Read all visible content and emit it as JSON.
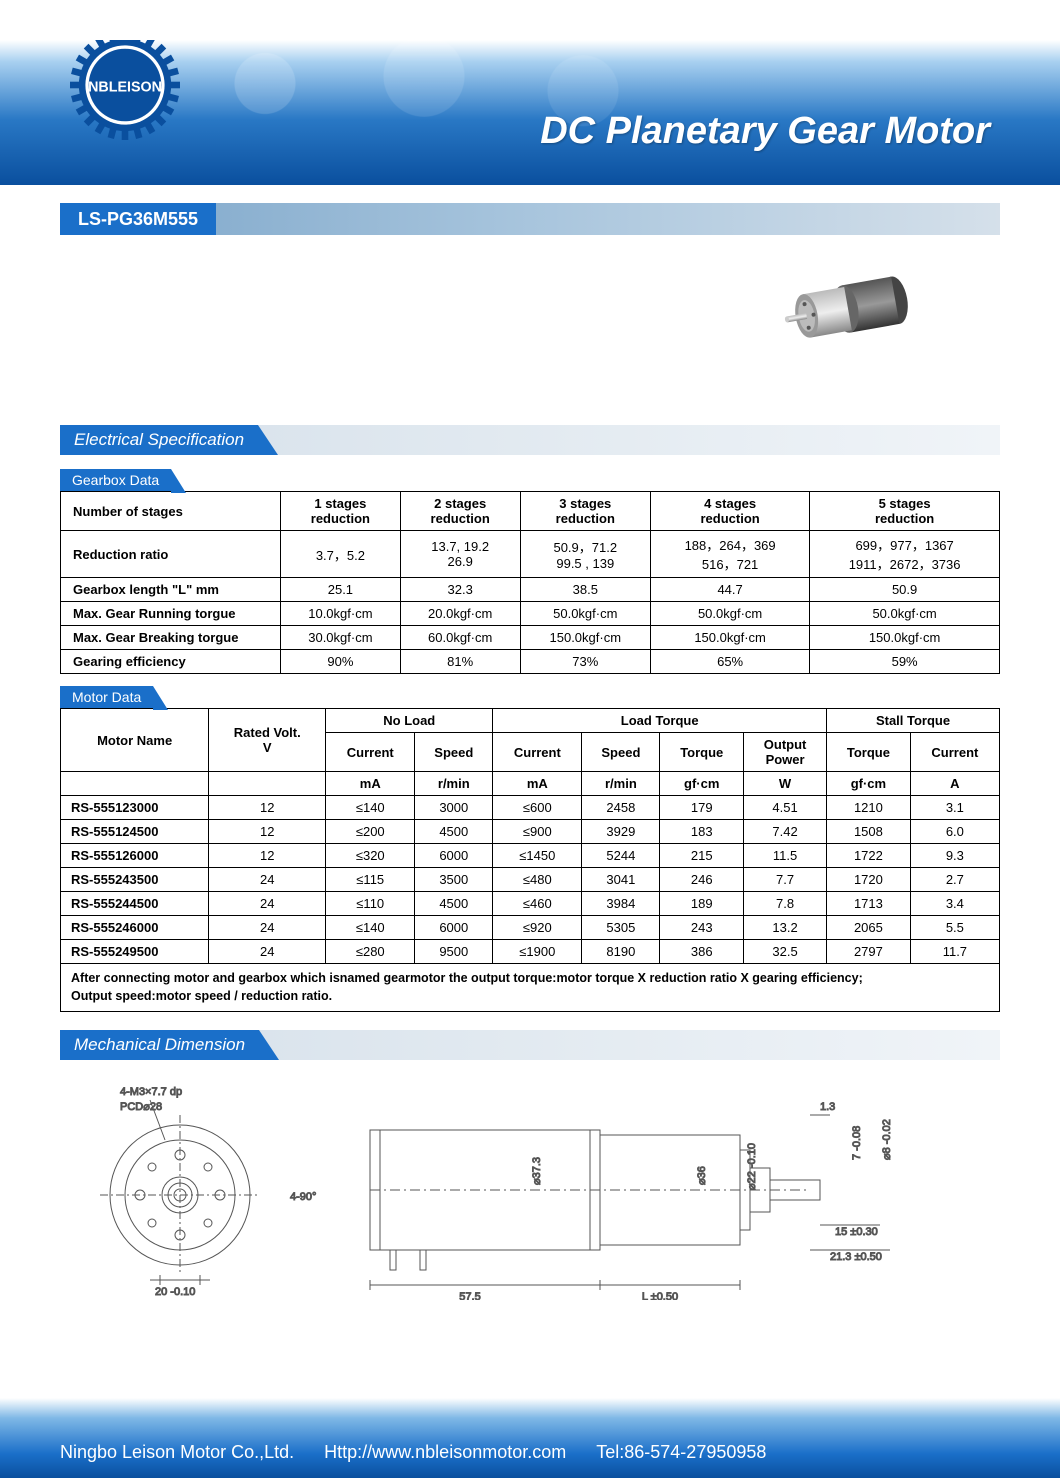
{
  "header": {
    "logo_text": "NBLEISON",
    "title": "DC Planetary Gear Motor"
  },
  "model": "LS-PG36M555",
  "sections": {
    "electrical": "Electrical Specification",
    "gearbox_data": "Gearbox Data",
    "motor_data": "Motor Data",
    "mechanical": "Mechanical Dimension"
  },
  "gearbox": {
    "header_row": [
      "Number of stages",
      "1 stages reduction",
      "2 stages reduction",
      "3 stages reduction",
      "4 stages reduction",
      "5 stages reduction"
    ],
    "rows": [
      [
        "Reduction ratio",
        "3.7，5.2",
        "13.7, 19.2\n26.9",
        "50.9，71.2\n99.5 , 139",
        "188，264，369\n516，721",
        "699，977，1367\n1911，2672，3736"
      ],
      [
        "Gearbox length \"L\" mm",
        "25.1",
        "32.3",
        "38.5",
        "44.7",
        "50.9"
      ],
      [
        "Max. Gear Running torgue",
        "10.0kgf·cm",
        "20.0kgf·cm",
        "50.0kgf·cm",
        "50.0kgf·cm",
        "50.0kgf·cm"
      ],
      [
        "Max. Gear Breaking torgue",
        "30.0kgf·cm",
        "60.0kgf·cm",
        "150.0kgf·cm",
        "150.0kgf·cm",
        "150.0kgf·cm"
      ],
      [
        "Gearing efficiency",
        "90%",
        "81%",
        "73%",
        "65%",
        "59%"
      ]
    ]
  },
  "motor": {
    "header_group": [
      "",
      "",
      "No Load",
      "Load Torque",
      "Stall Torque"
    ],
    "header_group_spans": [
      1,
      1,
      2,
      4,
      2
    ],
    "header_sub": [
      "Motor Name",
      "Rated Volt. V",
      "Current",
      "Speed",
      "Current",
      "Speed",
      "Torque",
      "Output Power",
      "Torque",
      "Current"
    ],
    "header_units": [
      "",
      "",
      "mA",
      "r/min",
      "mA",
      "r/min",
      "gf·cm",
      "W",
      "gf·cm",
      "A"
    ],
    "rows": [
      [
        "RS-555123000",
        "12",
        "≤140",
        "3000",
        "≤600",
        "2458",
        "179",
        "4.51",
        "1210",
        "3.1"
      ],
      [
        "RS-555124500",
        "12",
        "≤200",
        "4500",
        "≤900",
        "3929",
        "183",
        "7.42",
        "1508",
        "6.0"
      ],
      [
        "RS-555126000",
        "12",
        "≤320",
        "6000",
        "≤1450",
        "5244",
        "215",
        "11.5",
        "1722",
        "9.3"
      ],
      [
        "RS-555243500",
        "24",
        "≤115",
        "3500",
        "≤480",
        "3041",
        "246",
        "7.7",
        "1720",
        "2.7"
      ],
      [
        "RS-555244500",
        "24",
        "≤110",
        "4500",
        "≤460",
        "3984",
        "189",
        "7.8",
        "1713",
        "3.4"
      ],
      [
        "RS-555246000",
        "24",
        "≤140",
        "6000",
        "≤920",
        "5305",
        "243",
        "13.2",
        "2065",
        "5.5"
      ],
      [
        "RS-555249500",
        "24",
        "≤280",
        "9500",
        "≤1900",
        "8190",
        "386",
        "32.5",
        "2797",
        "11.7"
      ]
    ],
    "note": "After connecting motor and gearbox which isnamed gearmotor the output torque:motor torque X reduction ratio X gearing efficiency;\nOutput speed:motor speed / reduction ratio."
  },
  "drawing": {
    "front": {
      "label_top": "4-M3×7.7  dp",
      "label_pcd": "PCD⌀28",
      "dim_bottom": "20 -0.10",
      "dim_right": "4-90°"
    },
    "side": {
      "dia1": "⌀37.3",
      "dia2": "⌀36",
      "dia3": "⌀22 -0.10",
      "len_body": "57.5",
      "len_L": "L ±0.50",
      "cap": "1.3",
      "flat": "7 -0.08",
      "shaft_d": "⌀8 -0.02",
      "shaft_len": "15 ±0.30",
      "total_shaft": "21.3 ±0.50"
    }
  },
  "footer": {
    "company": "Ningbo Leison Motor Co.,Ltd.",
    "url": "Http://www.nbleisonmotor.com",
    "tel": "Tel:86-574-27950958"
  },
  "colors": {
    "primary_blue": "#1a6fc9",
    "dark_blue": "#0a4f9e",
    "light_blue": "#a8d0f0",
    "gray_bar": "#d5e0ea"
  }
}
